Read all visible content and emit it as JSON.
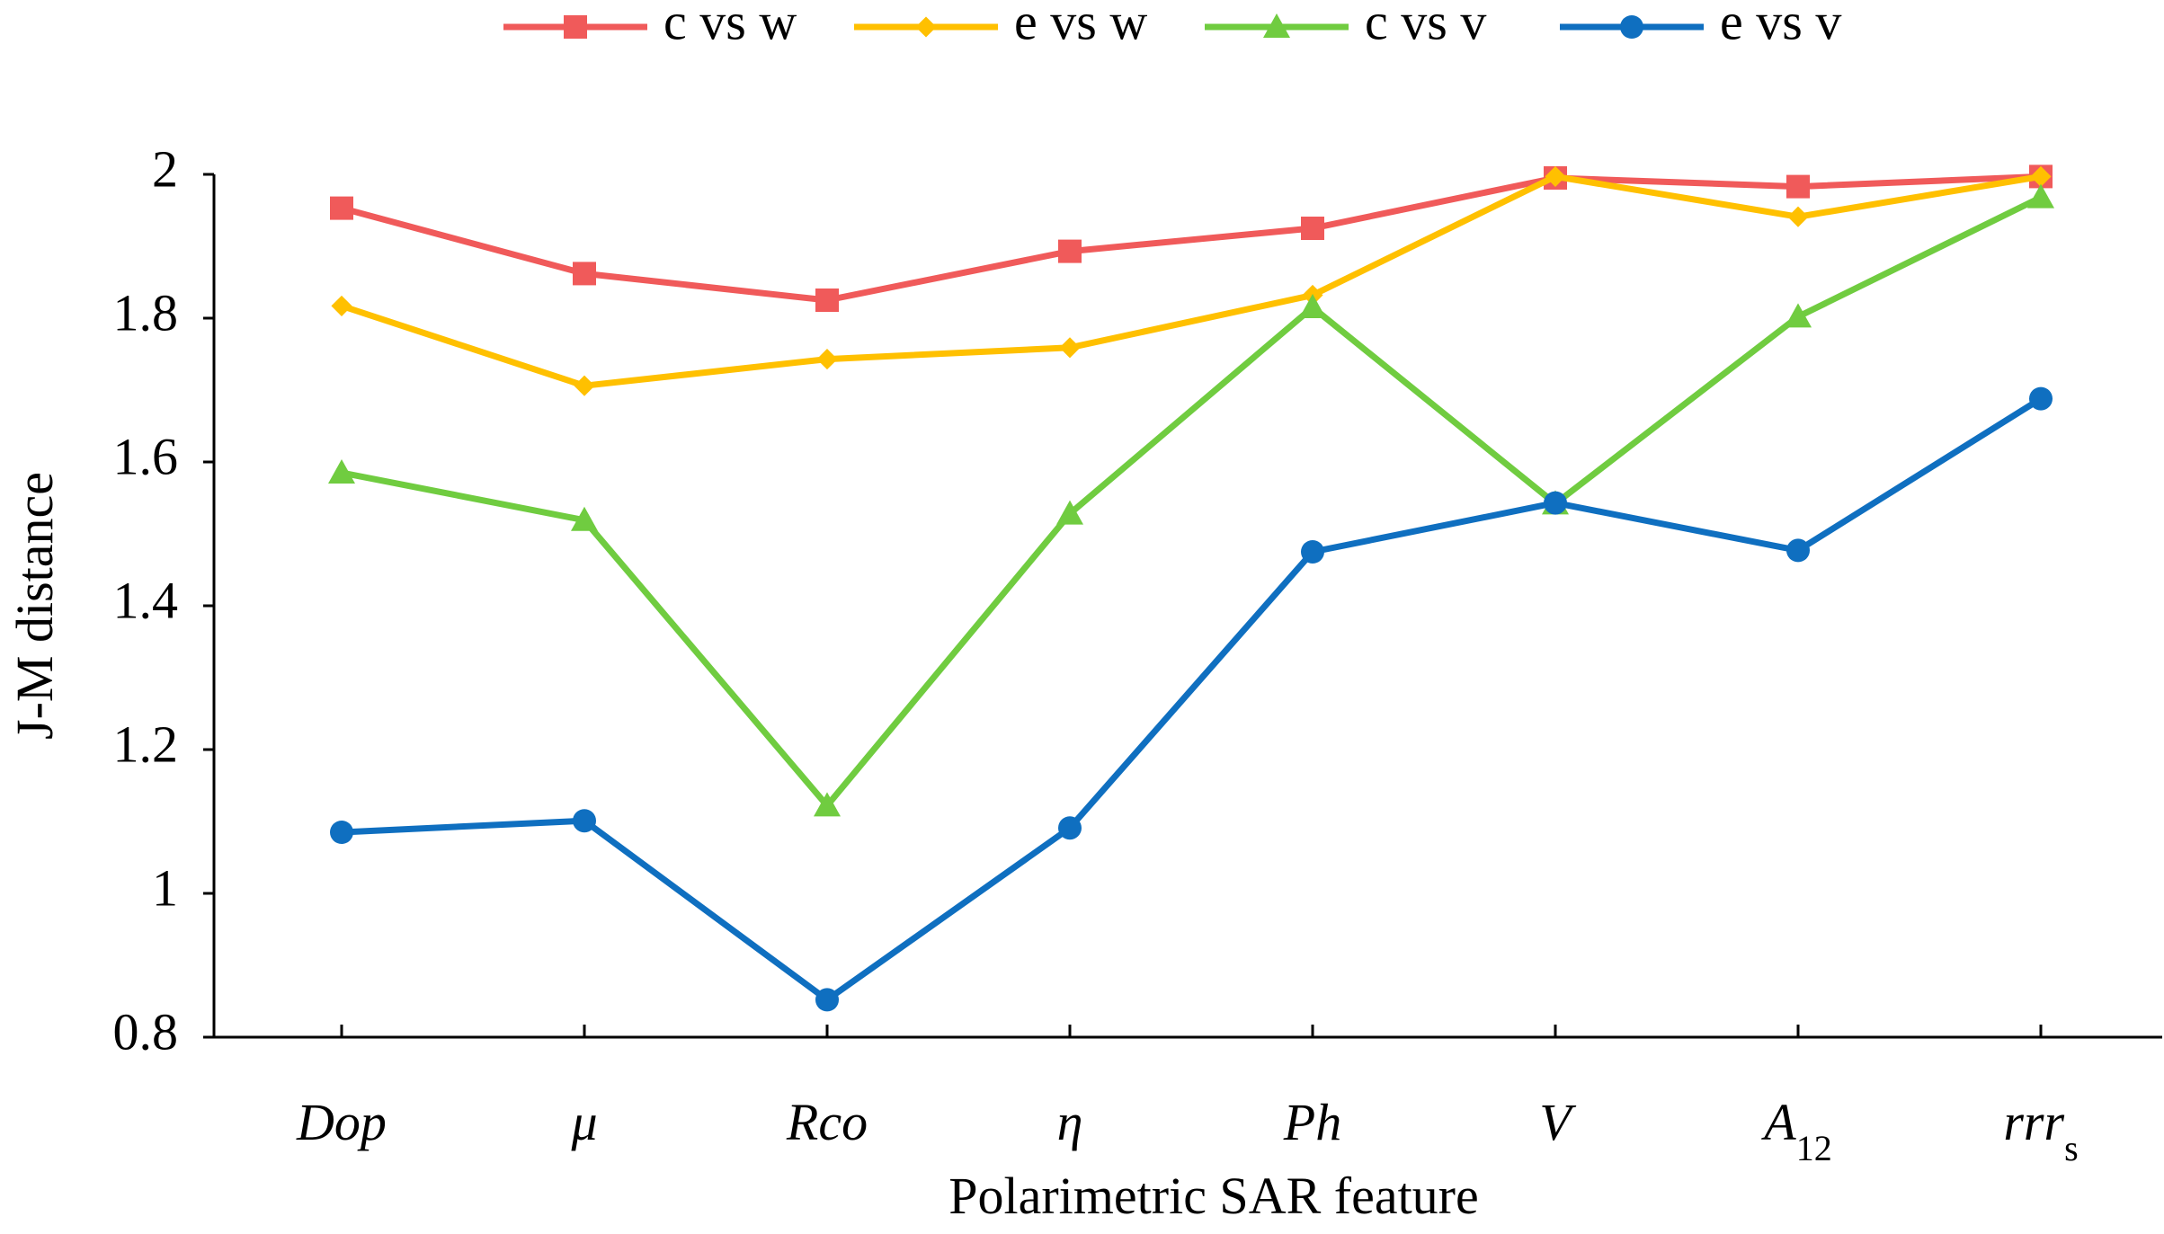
{
  "chart_data": {
    "type": "line",
    "title": "",
    "xlabel": "Polarimetric SAR feature",
    "ylabel": "J-M distance",
    "ylim": [
      0.8,
      2
    ],
    "yticks": [
      0.8,
      1,
      1.2,
      1.4,
      1.6,
      1.8,
      2
    ],
    "ytick_labels": [
      "0.8",
      "1",
      "1.2",
      "1.4",
      "1.6",
      "1.8",
      "2"
    ],
    "grid": false,
    "legend_position": "top",
    "categories": [
      {
        "base": "Dop",
        "sub": ""
      },
      {
        "base": "μ",
        "sub": ""
      },
      {
        "base": "Rco",
        "sub": ""
      },
      {
        "base": "η",
        "sub": ""
      },
      {
        "base": "Ph",
        "sub": ""
      },
      {
        "base": "V",
        "sub": ""
      },
      {
        "base": "A",
        "sub": "12"
      },
      {
        "base": "rrr",
        "sub": "s"
      }
    ],
    "series": [
      {
        "name": "c vs w",
        "color": "#F05A5A",
        "marker": "square",
        "values": [
          1.953,
          1.862,
          1.825,
          1.893,
          1.925,
          1.995,
          1.983,
          1.997
        ]
      },
      {
        "name": "e vs w",
        "color": "#FFC000",
        "marker": "diamond",
        "values": [
          1.817,
          1.706,
          1.743,
          1.759,
          1.832,
          1.997,
          1.941,
          1.997
        ]
      },
      {
        "name": "c vs v",
        "color": "#70CC40",
        "marker": "triangle",
        "values": [
          1.585,
          1.519,
          1.122,
          1.528,
          1.815,
          1.542,
          1.802,
          1.968
        ]
      },
      {
        "name": "e vs v",
        "color": "#0F6FC0",
        "marker": "circle",
        "values": [
          1.085,
          1.101,
          0.852,
          1.091,
          1.475,
          1.543,
          1.477,
          1.688
        ]
      }
    ]
  }
}
